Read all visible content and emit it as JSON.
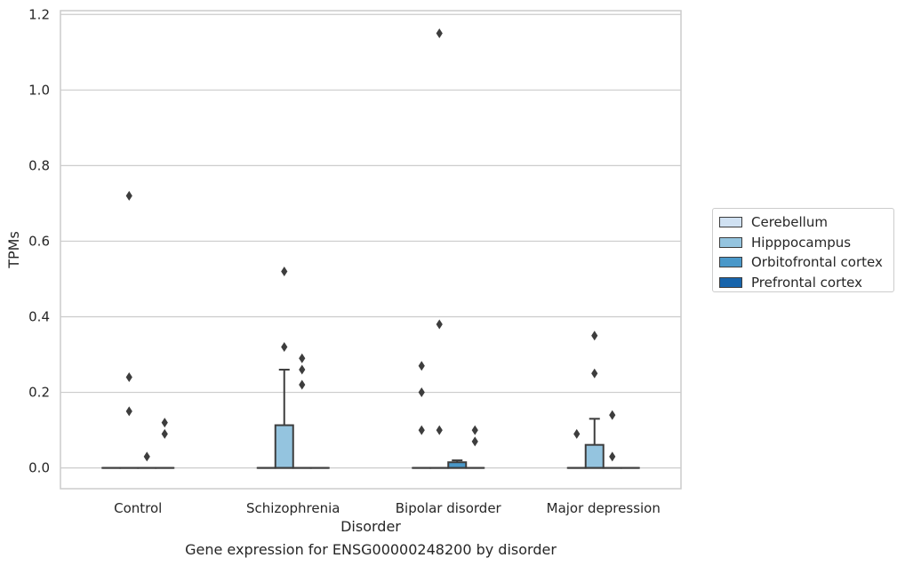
{
  "chart_data": {
    "type": "box",
    "title": "Gene expression for ENSG00000248200 by disorder",
    "xlabel": "Disorder",
    "ylabel": "TPMs",
    "ylim": [
      -0.055,
      1.21
    ],
    "yticks": [
      "0.0",
      "0.2",
      "0.4",
      "0.6",
      "0.8",
      "1.0",
      "1.2"
    ],
    "ytick_values": [
      0.0,
      0.2,
      0.4,
      0.6,
      0.8,
      1.0,
      1.2
    ],
    "grid": true,
    "legend_position": "right",
    "categories": [
      "Control",
      "Schizophrenia",
      "Bipolar disorder",
      "Major depression"
    ],
    "series": [
      {
        "name": "Cerebellum",
        "color": "#d0e1f2",
        "boxes": [
          {
            "q1": 0,
            "median": 0,
            "q3": 0,
            "whisker_low": 0,
            "whisker_high": 0,
            "outliers": []
          },
          {
            "q1": 0,
            "median": 0,
            "q3": 0,
            "whisker_low": 0,
            "whisker_high": 0,
            "outliers": []
          },
          {
            "q1": 0,
            "median": 0,
            "q3": 0,
            "whisker_low": 0,
            "whisker_high": 0,
            "outliers": [
              0.1,
              0.2,
              0.27
            ]
          },
          {
            "q1": 0,
            "median": 0,
            "q3": 0,
            "whisker_low": 0,
            "whisker_high": 0,
            "outliers": [
              0.09
            ]
          }
        ]
      },
      {
        "name": "Hipppocampus",
        "color": "#94c4df",
        "boxes": [
          {
            "q1": 0,
            "median": 0,
            "q3": 0,
            "whisker_low": 0,
            "whisker_high": 0,
            "outliers": [
              0.15,
              0.24,
              0.72
            ]
          },
          {
            "q1": 0,
            "median": 0,
            "q3": 0.113,
            "whisker_low": 0,
            "whisker_high": 0.26,
            "outliers": [
              0.32,
              0.52
            ]
          },
          {
            "q1": 0,
            "median": 0,
            "q3": 0,
            "whisker_low": 0,
            "whisker_high": 0,
            "outliers": [
              0.1,
              0.38,
              1.15
            ]
          },
          {
            "q1": 0,
            "median": 0,
            "q3": 0.061,
            "whisker_low": 0,
            "whisker_high": 0.13,
            "outliers": [
              0.25,
              0.35
            ]
          }
        ]
      },
      {
        "name": "Orbitofrontal cortex",
        "color": "#4a98c9",
        "boxes": [
          {
            "q1": 0,
            "median": 0,
            "q3": 0,
            "whisker_low": 0,
            "whisker_high": 0,
            "outliers": [
              0.03
            ]
          },
          {
            "q1": 0,
            "median": 0,
            "q3": 0,
            "whisker_low": 0,
            "whisker_high": 0,
            "outliers": [
              0.22,
              0.26,
              0.29
            ]
          },
          {
            "q1": 0,
            "median": 0,
            "q3": 0.015,
            "whisker_low": 0,
            "whisker_high": 0.02,
            "outliers": []
          },
          {
            "q1": 0,
            "median": 0,
            "q3": 0,
            "whisker_low": 0,
            "whisker_high": 0,
            "outliers": [
              0.03,
              0.14
            ]
          }
        ]
      },
      {
        "name": "Prefrontal cortex",
        "color": "#1764ab",
        "boxes": [
          {
            "q1": 0,
            "median": 0,
            "q3": 0,
            "whisker_low": 0,
            "whisker_high": 0,
            "outliers": [
              0.09,
              0.12
            ]
          },
          {
            "q1": 0,
            "median": 0,
            "q3": 0,
            "whisker_low": 0,
            "whisker_high": 0,
            "outliers": []
          },
          {
            "q1": 0,
            "median": 0,
            "q3": 0,
            "whisker_low": 0,
            "whisker_high": 0,
            "outliers": [
              0.07,
              0.1
            ]
          },
          {
            "q1": 0,
            "median": 0,
            "q3": 0,
            "whisker_low": 0,
            "whisker_high": 0,
            "outliers": []
          }
        ]
      }
    ]
  }
}
